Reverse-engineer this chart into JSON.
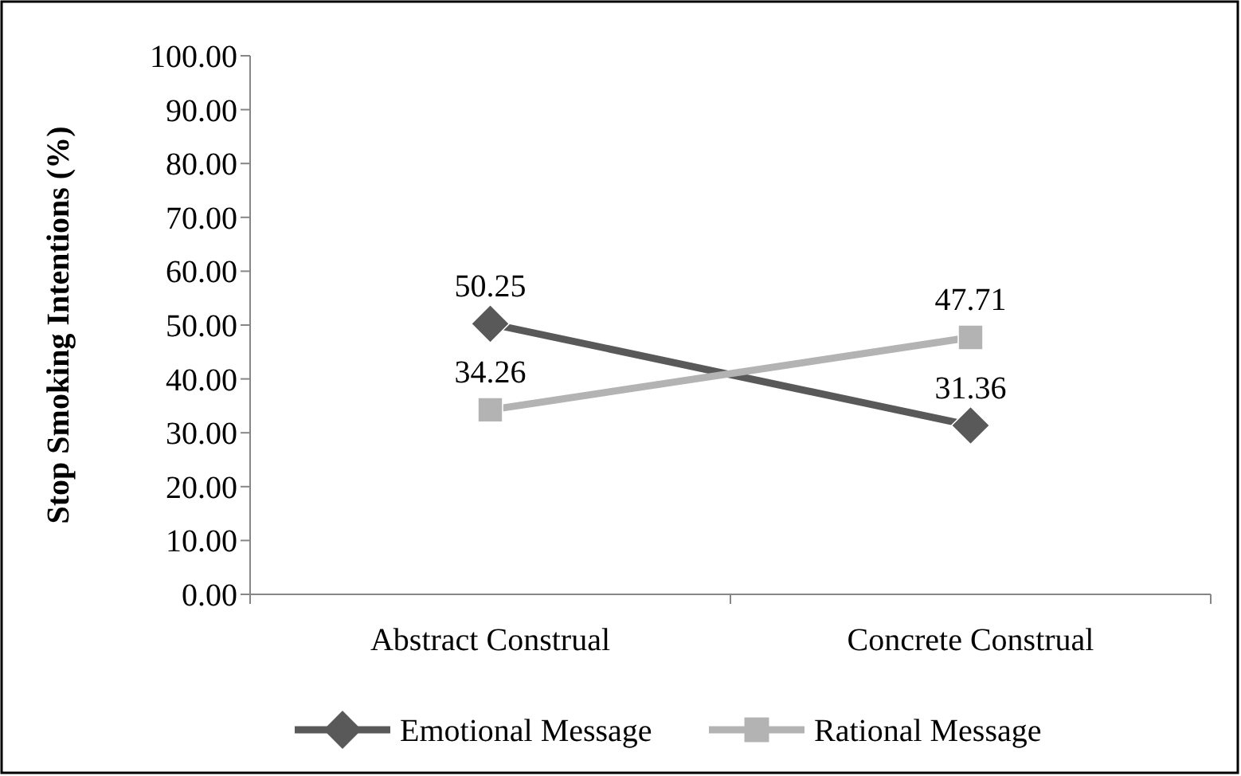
{
  "chart_data": {
    "type": "line",
    "ylabel": "Stop Smoking Intentions (%)",
    "categories": [
      "Abstract Construal",
      "Concrete Construal"
    ],
    "series": [
      {
        "name": "Emotional Message",
        "color": "#595959",
        "values": [
          50.25,
          31.36
        ],
        "marker": "diamond"
      },
      {
        "name": "Rational Message",
        "color": "#b3b3b3",
        "values": [
          34.26,
          47.71
        ],
        "marker": "square"
      }
    ],
    "ylim": [
      0,
      100
    ],
    "yticks": [
      {
        "value": 0,
        "label": "0.00"
      },
      {
        "value": 10,
        "label": "10.00"
      },
      {
        "value": 20,
        "label": "20.00"
      },
      {
        "value": 30,
        "label": "30.00"
      },
      {
        "value": 40,
        "label": "40.00"
      },
      {
        "value": 50,
        "label": "50.00"
      },
      {
        "value": 60,
        "label": "60.00"
      },
      {
        "value": 70,
        "label": "70.00"
      },
      {
        "value": 80,
        "label": "80.00"
      },
      {
        "value": 90,
        "label": "90.00"
      },
      {
        "value": 100,
        "label": "100.00"
      }
    ],
    "data_labels": true,
    "grid": false,
    "legend": "bottom",
    "line_style": "solid"
  }
}
